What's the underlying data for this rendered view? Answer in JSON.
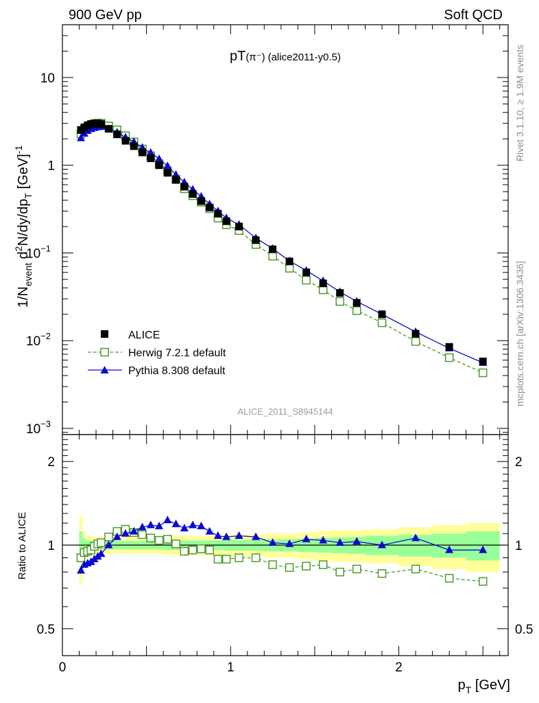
{
  "header": {
    "left": "900 GeV pp",
    "right": "Soft QCD"
  },
  "side_labels": {
    "rivet": "Rivet 3.1.10, ≥ 1.9M events",
    "mcplots": "mcplots.cern.ch [arXiv:1306.3436]"
  },
  "chart_data": [
    {
      "type": "scatter",
      "title": "pT(π⁻) (alice2011-y0.5)",
      "title_main": "pT",
      "title_particle": "(π⁻)",
      "title_tag": "(alice2011-y0.5)",
      "watermark": "ALICE_2011_S8945144",
      "ylabel": "1/N_event d²N/dy/dp_T [GeV]⁻¹",
      "ylabel_parts": {
        "a": "1/N",
        "b": "event",
        "c": " d",
        "d": "2",
        "e": "N/dy/dp",
        "f": "T",
        "g": " [GeV]",
        "h": "-1"
      },
      "yscale": "log",
      "ylim": [
        0.00085,
        40
      ],
      "xlim": [
        0,
        2.65
      ],
      "y_ticks": [
        {
          "value": 10,
          "base": "10",
          "exp": ""
        },
        {
          "value": 1,
          "base": "1",
          "exp": ""
        },
        {
          "value": 0.1,
          "base": "10",
          "exp": "−1"
        },
        {
          "value": 0.01,
          "base": "10",
          "exp": "−2"
        },
        {
          "value": 0.001,
          "base": "10",
          "exp": "−3"
        }
      ],
      "legend_position": "lower-left",
      "series": [
        {
          "name": "ALICE",
          "color": "#000000",
          "marker": "filled-square",
          "line": "none",
          "x": [
            0.11,
            0.13,
            0.15,
            0.17,
            0.19,
            0.21,
            0.23,
            0.275,
            0.325,
            0.375,
            0.425,
            0.475,
            0.525,
            0.575,
            0.625,
            0.675,
            0.725,
            0.775,
            0.825,
            0.875,
            0.925,
            0.975,
            1.05,
            1.15,
            1.25,
            1.35,
            1.45,
            1.55,
            1.65,
            1.75,
            1.9,
            2.1,
            2.3,
            2.5
          ],
          "y": [
            2.52,
            2.7,
            2.85,
            2.95,
            3.0,
            3.0,
            2.95,
            2.6,
            2.25,
            1.9,
            1.65,
            1.4,
            1.2,
            1.0,
            0.82,
            0.68,
            0.57,
            0.47,
            0.39,
            0.33,
            0.28,
            0.23,
            0.2,
            0.14,
            0.11,
            0.08,
            0.06,
            0.045,
            0.035,
            0.027,
            0.02,
            0.012,
            0.0085,
            0.0058
          ]
        },
        {
          "name": "Herwig 7.2.1 default",
          "color": "#4c9a2a",
          "marker": "open-square",
          "line": "dashed",
          "x": [
            0.11,
            0.13,
            0.15,
            0.17,
            0.19,
            0.21,
            0.23,
            0.275,
            0.325,
            0.375,
            0.425,
            0.475,
            0.525,
            0.575,
            0.625,
            0.675,
            0.725,
            0.775,
            0.825,
            0.875,
            0.925,
            0.975,
            1.05,
            1.15,
            1.25,
            1.35,
            1.45,
            1.55,
            1.65,
            1.75,
            1.9,
            2.1,
            2.3,
            2.5
          ],
          "y": [
            2.27,
            2.54,
            2.72,
            2.86,
            2.97,
            3.02,
            3.01,
            2.8,
            2.53,
            2.17,
            1.84,
            1.53,
            1.28,
            1.04,
            0.86,
            0.69,
            0.54,
            0.45,
            0.38,
            0.32,
            0.25,
            0.21,
            0.18,
            0.125,
            0.092,
            0.067,
            0.049,
            0.038,
            0.028,
            0.022,
            0.016,
            0.0098,
            0.0064,
            0.0043
          ]
        },
        {
          "name": "Pythia 8.308 default",
          "color": "#0a0ad2",
          "marker": "filled-triangle",
          "line": "solid",
          "x": [
            0.11,
            0.13,
            0.15,
            0.17,
            0.19,
            0.21,
            0.23,
            0.275,
            0.325,
            0.375,
            0.425,
            0.475,
            0.525,
            0.575,
            0.625,
            0.675,
            0.725,
            0.775,
            0.825,
            0.875,
            0.925,
            0.975,
            1.05,
            1.15,
            1.25,
            1.35,
            1.45,
            1.55,
            1.65,
            1.75,
            1.9,
            2.1,
            2.3,
            2.5
          ],
          "y": [
            2.04,
            2.3,
            2.47,
            2.59,
            2.67,
            2.72,
            2.75,
            2.6,
            2.37,
            2.08,
            1.85,
            1.59,
            1.39,
            1.18,
            0.98,
            0.78,
            0.64,
            0.53,
            0.44,
            0.36,
            0.3,
            0.25,
            0.21,
            0.148,
            0.112,
            0.081,
            0.063,
            0.048,
            0.036,
            0.028,
            0.02,
            0.0126,
            0.0082,
            0.0056
          ]
        }
      ]
    },
    {
      "type": "scatter",
      "ylabel": "Ratio to ALICE",
      "xlabel": "p_T [GeV]",
      "xlabel_parts": {
        "a": "p",
        "b": "T",
        "c": " [GeV]"
      },
      "yscale": "log",
      "ylim": [
        0.4,
        2.5
      ],
      "xlim": [
        0,
        2.65
      ],
      "y_ticks": [
        {
          "value": 2,
          "label": "2"
        },
        {
          "value": 1,
          "label": "1"
        },
        {
          "value": 0.5,
          "label": "0.5"
        }
      ],
      "x_ticks": [
        {
          "value": 0,
          "label": "0"
        },
        {
          "value": 1,
          "label": "1"
        },
        {
          "value": 2,
          "label": "2"
        }
      ],
      "uncertainty_bands": {
        "x_edges": [
          0.1,
          0.12,
          0.14,
          0.16,
          0.18,
          0.2,
          0.22,
          0.25,
          0.3,
          0.35,
          0.4,
          0.45,
          0.5,
          0.55,
          0.6,
          0.65,
          0.7,
          0.75,
          0.8,
          0.85,
          0.9,
          0.95,
          1.0,
          1.1,
          1.2,
          1.3,
          1.4,
          1.5,
          1.6,
          1.7,
          1.8,
          2.0,
          2.2,
          2.4,
          2.6
        ],
        "outer": [
          0.27,
          0.12,
          0.08,
          0.07,
          0.07,
          0.07,
          0.07,
          0.07,
          0.07,
          0.07,
          0.07,
          0.07,
          0.07,
          0.07,
          0.08,
          0.08,
          0.08,
          0.08,
          0.08,
          0.08,
          0.08,
          0.09,
          0.09,
          0.09,
          0.1,
          0.1,
          0.11,
          0.12,
          0.13,
          0.13,
          0.14,
          0.16,
          0.18,
          0.2
        ],
        "inner": [
          0.12,
          0.06,
          0.04,
          0.035,
          0.035,
          0.035,
          0.035,
          0.035,
          0.035,
          0.035,
          0.035,
          0.035,
          0.035,
          0.035,
          0.04,
          0.04,
          0.04,
          0.04,
          0.04,
          0.04,
          0.04,
          0.045,
          0.045,
          0.045,
          0.05,
          0.05,
          0.055,
          0.06,
          0.065,
          0.07,
          0.08,
          0.09,
          0.1,
          0.12
        ],
        "outer_color": "#ffff99",
        "inner_color": "#99ff99"
      },
      "series": [
        {
          "name": "Herwig 7.2.1 default",
          "color": "#4c9a2a",
          "marker": "open-square",
          "line": "dashed",
          "x": [
            0.11,
            0.13,
            0.15,
            0.17,
            0.19,
            0.21,
            0.23,
            0.275,
            0.325,
            0.375,
            0.425,
            0.475,
            0.525,
            0.575,
            0.625,
            0.675,
            0.725,
            0.775,
            0.825,
            0.875,
            0.925,
            0.975,
            1.05,
            1.15,
            1.25,
            1.35,
            1.45,
            1.55,
            1.65,
            1.75,
            1.9,
            2.1,
            2.3,
            2.5
          ],
          "y": [
            0.9,
            0.94,
            0.95,
            0.96,
            0.99,
            1.01,
            1.02,
            1.07,
            1.12,
            1.14,
            1.11,
            1.09,
            1.06,
            1.04,
            1.05,
            1.01,
            0.95,
            0.96,
            0.97,
            0.96,
            0.89,
            0.89,
            0.9,
            0.9,
            0.85,
            0.83,
            0.84,
            0.85,
            0.8,
            0.82,
            0.79,
            0.82,
            0.76,
            0.74
          ]
        },
        {
          "name": "Pythia 8.308 default",
          "color": "#0a0ad2",
          "marker": "filled-triangle",
          "line": "solid",
          "x": [
            0.11,
            0.13,
            0.15,
            0.17,
            0.19,
            0.21,
            0.23,
            0.275,
            0.325,
            0.375,
            0.425,
            0.475,
            0.525,
            0.575,
            0.625,
            0.675,
            0.725,
            0.775,
            0.825,
            0.875,
            0.925,
            0.975,
            1.05,
            1.15,
            1.25,
            1.35,
            1.45,
            1.55,
            1.65,
            1.75,
            1.9,
            2.1,
            2.3,
            2.5
          ],
          "y": [
            0.81,
            0.85,
            0.86,
            0.87,
            0.89,
            0.91,
            0.93,
            1.0,
            1.07,
            1.1,
            1.12,
            1.16,
            1.18,
            1.17,
            1.23,
            1.19,
            1.15,
            1.18,
            1.17,
            1.12,
            1.08,
            1.07,
            1.08,
            1.07,
            1.02,
            1.01,
            1.05,
            1.04,
            1.02,
            1.03,
            1.0,
            1.06,
            0.96,
            0.96
          ]
        }
      ]
    }
  ]
}
